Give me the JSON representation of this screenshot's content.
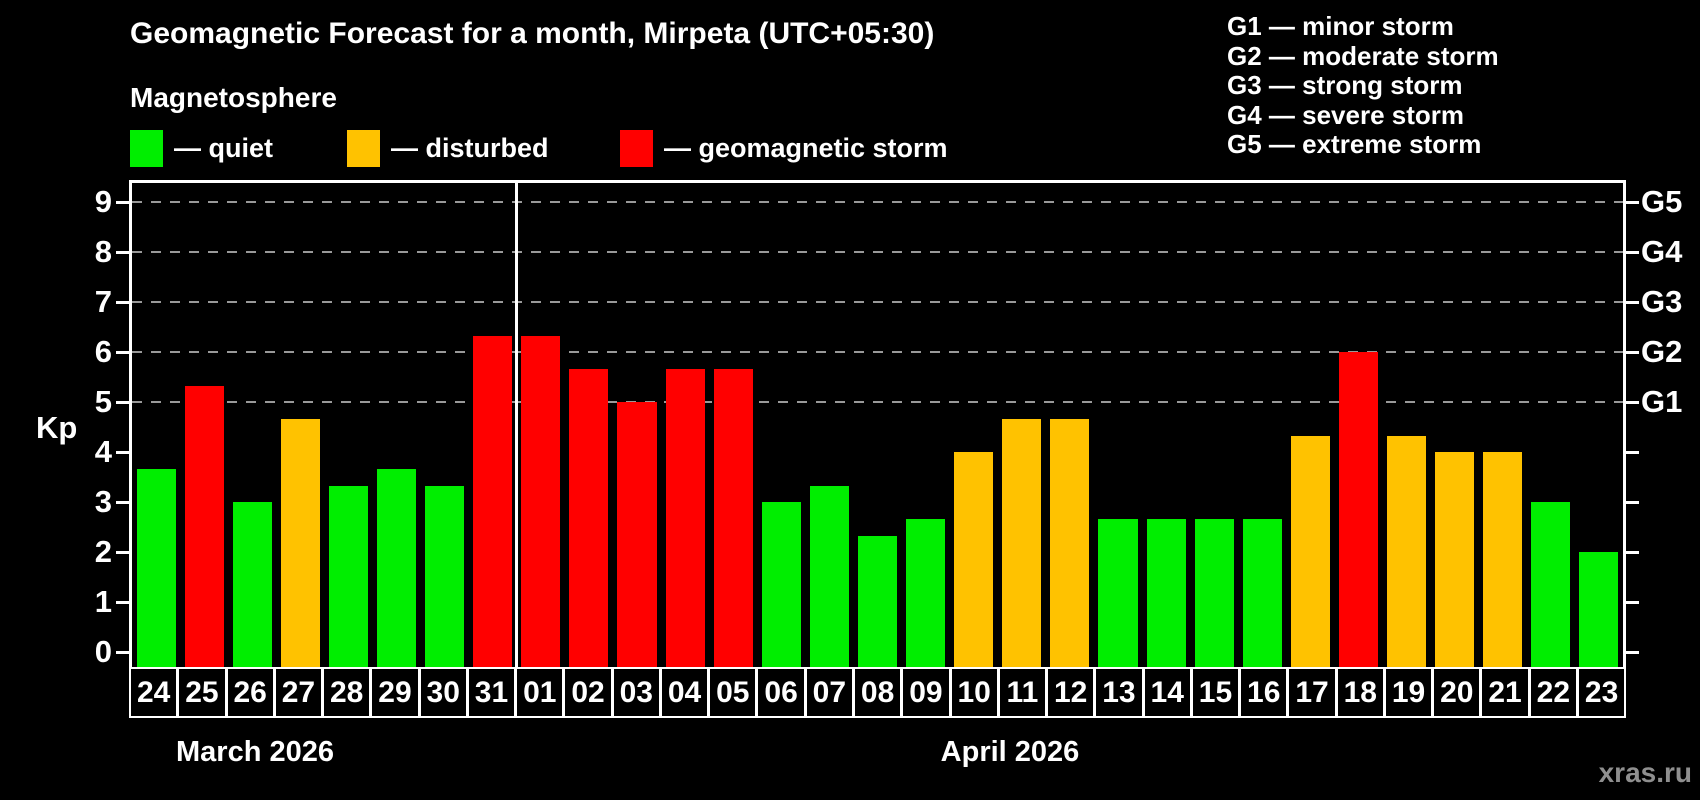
{
  "title": "Geomagnetic Forecast for a month, Mirpeta (UTC+05:30)",
  "subtitle": "Magnetosphere",
  "legend": {
    "items": [
      {
        "key": "quiet",
        "label": "— quiet",
        "color": "#00ee00"
      },
      {
        "key": "disturbed",
        "label": "— disturbed",
        "color": "#ffc200"
      },
      {
        "key": "storm",
        "label": "— geomagnetic storm",
        "color": "#ff0000"
      }
    ]
  },
  "g_legend": [
    "G1 — minor storm",
    "G2 — moderate storm",
    "G3 — strong storm",
    "G4 — severe storm",
    "G5 — extreme storm"
  ],
  "watermark": "xras.ru",
  "chart_data": {
    "type": "bar",
    "title": "Geomagnetic Forecast for a month, Mirpeta (UTC+05:30)",
    "ylabel": "Kp",
    "ylim": [
      0,
      9
    ],
    "y_ticks": [
      0,
      1,
      2,
      3,
      4,
      5,
      6,
      7,
      8,
      9
    ],
    "grid": "dashed horizontal gridlines at Kp 5-9 only",
    "gridlines_kp": [
      5,
      6,
      7,
      8,
      9
    ],
    "right_axis": [
      {
        "label": "G1",
        "kp": 5
      },
      {
        "label": "G2",
        "kp": 6
      },
      {
        "label": "G3",
        "kp": 7
      },
      {
        "label": "G4",
        "kp": 8
      },
      {
        "label": "G5",
        "kp": 9
      }
    ],
    "months": [
      {
        "label": "March 2026",
        "days": 8
      },
      {
        "label": "April 2026",
        "days": 23
      }
    ],
    "bars": [
      {
        "day": "24",
        "kp": 3.67,
        "status": "quiet"
      },
      {
        "day": "25",
        "kp": 5.33,
        "status": "storm"
      },
      {
        "day": "26",
        "kp": 3.0,
        "status": "quiet"
      },
      {
        "day": "27",
        "kp": 4.67,
        "status": "disturbed"
      },
      {
        "day": "28",
        "kp": 3.33,
        "status": "quiet"
      },
      {
        "day": "29",
        "kp": 3.67,
        "status": "quiet"
      },
      {
        "day": "30",
        "kp": 3.33,
        "status": "quiet"
      },
      {
        "day": "31",
        "kp": 6.33,
        "status": "storm"
      },
      {
        "day": "01",
        "kp": 6.33,
        "status": "storm"
      },
      {
        "day": "02",
        "kp": 5.67,
        "status": "storm"
      },
      {
        "day": "03",
        "kp": 5.0,
        "status": "storm"
      },
      {
        "day": "04",
        "kp": 5.67,
        "status": "storm"
      },
      {
        "day": "05",
        "kp": 5.67,
        "status": "storm"
      },
      {
        "day": "06",
        "kp": 3.0,
        "status": "quiet"
      },
      {
        "day": "07",
        "kp": 3.33,
        "status": "quiet"
      },
      {
        "day": "08",
        "kp": 2.33,
        "status": "quiet"
      },
      {
        "day": "09",
        "kp": 2.67,
        "status": "quiet"
      },
      {
        "day": "10",
        "kp": 4.0,
        "status": "disturbed"
      },
      {
        "day": "11",
        "kp": 4.67,
        "status": "disturbed"
      },
      {
        "day": "12",
        "kp": 4.67,
        "status": "disturbed"
      },
      {
        "day": "13",
        "kp": 2.67,
        "status": "quiet"
      },
      {
        "day": "14",
        "kp": 2.67,
        "status": "quiet"
      },
      {
        "day": "15",
        "kp": 2.67,
        "status": "quiet"
      },
      {
        "day": "16",
        "kp": 2.67,
        "status": "quiet"
      },
      {
        "day": "17",
        "kp": 4.33,
        "status": "disturbed"
      },
      {
        "day": "18",
        "kp": 6.0,
        "status": "storm"
      },
      {
        "day": "19",
        "kp": 4.33,
        "status": "disturbed"
      },
      {
        "day": "20",
        "kp": 4.0,
        "status": "disturbed"
      },
      {
        "day": "21",
        "kp": 4.0,
        "status": "disturbed"
      },
      {
        "day": "22",
        "kp": 3.0,
        "status": "quiet"
      },
      {
        "day": "23",
        "kp": 2.0,
        "status": "quiet"
      }
    ]
  }
}
